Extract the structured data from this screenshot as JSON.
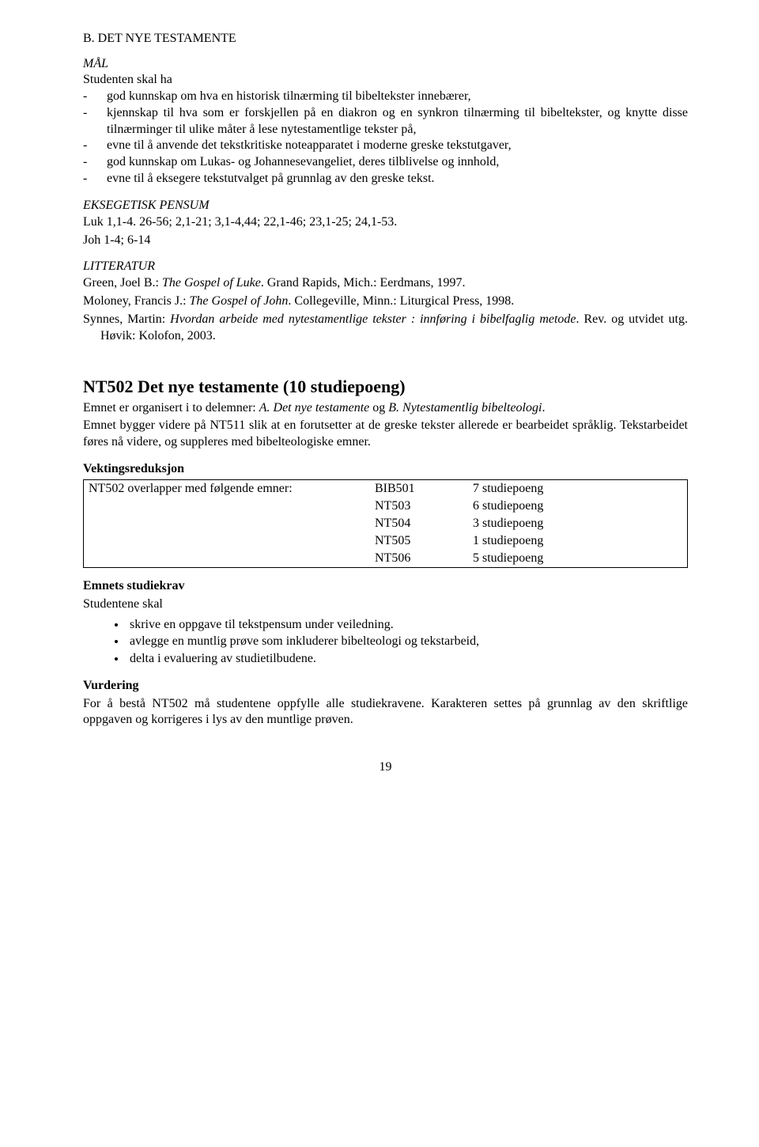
{
  "sectionB": {
    "title": "B. DET NYE TESTAMENTE",
    "malLabel": "MÅL",
    "intro": "Studenten skal ha",
    "goals": [
      "god kunnskap om hva en historisk tilnærming til bibeltekster innebærer,",
      "kjennskap til hva som er forskjellen på en diakron og en synkron tilnærming til bibeltekster, og knytte disse tilnærminger til ulike måter å lese nytestamentlige tekster på,",
      "evne til å anvende det tekstkritiske noteapparatet i moderne greske tekstutgaver,",
      "god kunnskap om Lukas- og Johannesevangeliet, deres tilblivelse og innhold,",
      "evne til å eksegere tekstutvalget på grunnlag av den greske tekst."
    ],
    "eksegetiskLabel": "EKSEGETISK PENSUM",
    "luk": "Luk 1,1-4. 26-56; 2,1-21; 3,1-4,44; 22,1-46; 23,1-25; 24,1-53.",
    "joh": "Joh 1-4; 6-14",
    "litteraturLabel": "LITTERATUR",
    "ref1_a": "Green, Joel B.: ",
    "ref1_i": "The Gospel of Luke",
    "ref1_b": ". Grand Rapids, Mich.: Eerdmans, 1997.",
    "ref2_a": "Moloney, Francis J.: ",
    "ref2_i": "The Gospel of John",
    "ref2_b": ". Collegeville, Minn.: Liturgical Press, 1998.",
    "ref3_a": "Synnes, Martin: ",
    "ref3_i": "Hvordan arbeide med nytestamentlige tekster : innføring i bibelfaglig metode",
    "ref3_b": ". Rev. og utvidet utg. Høvik: Kolofon, 2003."
  },
  "nt502": {
    "heading": "NT502 Det nye testamente (10 studiepoeng)",
    "intro1a": "Emnet er organisert i to delemner: ",
    "intro1b": "A. Det nye testamente",
    "intro1c": " og ",
    "intro1d": "B. Nytestamentlig bibelteologi",
    "intro1e": ".",
    "intro2": "Emnet bygger videre på NT511 slik at en forutsetter at de greske tekster allerede er bearbeidet språklig. Tekstarbeidet føres nå videre, og suppleres med bibelteologiske emner.",
    "vektLabel": "Vektingsreduksjon",
    "vektIntro": "NT502 overlapper med følgende emner:",
    "vektRows": [
      {
        "code": "BIB501",
        "pts": "7",
        "word": "studiepoeng"
      },
      {
        "code": "NT503",
        "pts": "6",
        "word": "studiepoeng"
      },
      {
        "code": "NT504",
        "pts": "3",
        "word": "studiepoeng"
      },
      {
        "code": "NT505",
        "pts": "1",
        "word": "studiepoeng"
      },
      {
        "code": "NT506",
        "pts": "5",
        "word": "studiepoeng"
      }
    ],
    "studiekravLabel": "Emnets studiekrav",
    "studiekravIntro": "Studentene skal",
    "kravItems": [
      "skrive en oppgave til tekstpensum under veiledning.",
      "avlegge en muntlig prøve som inkluderer bibelteologi og tekstarbeid,",
      "delta i evaluering av studietilbudene."
    ],
    "vurderingLabel": "Vurdering",
    "vurderingText": "For å bestå NT502 må studentene oppfylle alle studiekravene. Karakteren settes på grunnlag av den skriftlige oppgaven og korrigeres i lys av den muntlige prøven."
  },
  "pageNumber": "19"
}
